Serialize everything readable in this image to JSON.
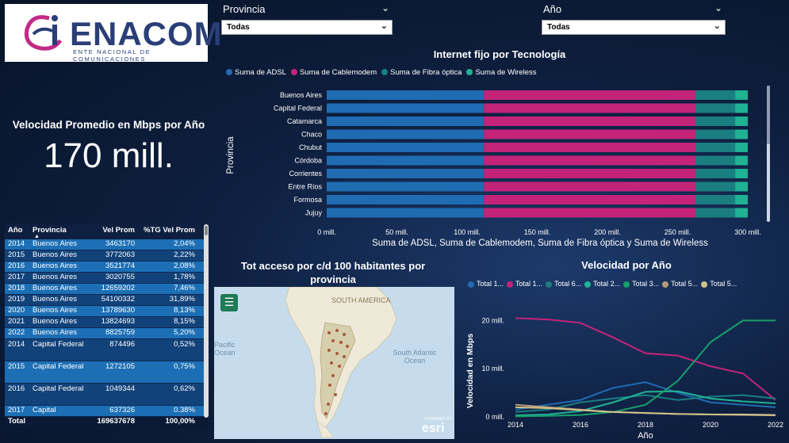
{
  "logo": {
    "name": "ENACOM",
    "subtitle": "ENTE NACIONAL DE COMUNICACIONES"
  },
  "slicers": {
    "provincia": {
      "label": "Provincia",
      "value": "Todas"
    },
    "anio": {
      "label": "Año",
      "value": "Todas"
    }
  },
  "kpi": {
    "title": "Velocidad Promedio en Mbps por Año",
    "value": "170 mill."
  },
  "table": {
    "headers": [
      "Año",
      "Provincia",
      "Vel Prom",
      "%TG Vel Prom"
    ],
    "rows": [
      [
        "2014",
        "Buenos Aires",
        "3463170",
        "2,04%"
      ],
      [
        "2015",
        "Buenos Aires",
        "3772063",
        "2,22%"
      ],
      [
        "2016",
        "Buenos Aires",
        "3521774",
        "2,08%"
      ],
      [
        "2017",
        "Buenos Aires",
        "3020755",
        "1,78%"
      ],
      [
        "2018",
        "Buenos Aires",
        "12659202",
        "7,46%"
      ],
      [
        "2019",
        "Buenos Aires",
        "54100332",
        "31,89%"
      ],
      [
        "2020",
        "Buenos Aires",
        "13789630",
        "8,13%"
      ],
      [
        "2021",
        "Buenos Aires",
        "13824693",
        "8,15%"
      ],
      [
        "2022",
        "Buenos Aires",
        "8825759",
        "5,20%"
      ],
      [
        "2014",
        "Capital Federal",
        "874496",
        "0,52%"
      ],
      [
        "2015",
        "Capital Federal",
        "1272105",
        "0,75%"
      ],
      [
        "2016",
        "Capital Federal",
        "1049344",
        "0,62%"
      ],
      [
        "2017",
        "Capital",
        "637326",
        "0.38%"
      ]
    ],
    "total": [
      "Total",
      "",
      "169637678",
      "100,00%"
    ]
  },
  "bar_chart": {
    "title": "Internet fijo por Tecnología",
    "y_axis_title": "Provincia",
    "x_axis_title": "Suma de ADSL, Suma de Cablemodem, Suma de Fibra óptica y Suma de Wireless",
    "x_ticks": [
      "0 mill.",
      "50 mill.",
      "100 mill.",
      "150 mill.",
      "200 mill.",
      "250 mill.",
      "300 mill."
    ]
  },
  "map": {
    "title": "Tot acceso por c/d 100 habitantes por provincia",
    "labels": {
      "continent": "SOUTH AMERICA",
      "pacific": "Pacific Ocean",
      "atlantic": "South Atlantic Ocean",
      "powered": "POWERED BY",
      "esri": "esri"
    },
    "menu_icon": "☰"
  },
  "line_chart": {
    "title": "Velocidad por Año",
    "y_axis_title": "Velocidad en Mbps",
    "x_axis_title": "Año",
    "y_ticks": [
      "0 mill.",
      "10 mill.",
      "20 mill."
    ],
    "x_ticks": [
      "2014",
      "2016",
      "2018",
      "2020",
      "2022"
    ],
    "legend": [
      "Total 1...",
      "Total 1...",
      "Total 6...",
      "Total 2...",
      "Total 3...",
      "Total 5...",
      "Total 5..."
    ]
  },
  "chart_data": [
    {
      "type": "bar",
      "title": "Internet fijo por Tecnología",
      "xlabel": "Suma de ADSL, Suma de Cablemodem, Suma de Fibra óptica y Suma de Wireless",
      "ylabel": "Provincia",
      "xlim": [
        0,
        300
      ],
      "x_unit": "mill.",
      "stacked": true,
      "orientation": "horizontal",
      "categories": [
        "Buenos Aires",
        "Capital Federal",
        "Catamarca",
        "Chaco",
        "Chubut",
        "Córdoba",
        "Corrientes",
        "Entre Ríos",
        "Formosa",
        "Jujuy"
      ],
      "series": [
        {
          "name": "Suma de ADSL",
          "color": "#1f6cb3",
          "values": [
            112,
            112,
            112,
            112,
            112,
            112,
            112,
            112,
            112,
            112
          ]
        },
        {
          "name": "Suma de Cablemodem",
          "color": "#c4237a",
          "values": [
            151,
            151,
            151,
            151,
            151,
            151,
            151,
            151,
            151,
            151
          ]
        },
        {
          "name": "Suma de Fibra óptica",
          "color": "#1a7e80",
          "values": [
            28,
            28,
            28,
            28,
            28,
            28,
            28,
            28,
            28,
            28
          ]
        },
        {
          "name": "Suma de Wireless",
          "color": "#20b294",
          "values": [
            9,
            9,
            9,
            9,
            9,
            9,
            9,
            9,
            9,
            9
          ]
        }
      ]
    },
    {
      "type": "line",
      "title": "Velocidad por Año",
      "xlabel": "Año",
      "ylabel": "Velocidad en Mbps",
      "ylim": [
        0,
        20
      ],
      "y_unit": "mill.",
      "x": [
        2014,
        2015,
        2016,
        2017,
        2018,
        2019,
        2020,
        2021,
        2022
      ],
      "series": [
        {
          "name": "Total 1...",
          "color": "#1f6cb3",
          "values": [
            1.5,
            2.5,
            3.5,
            6,
            7.2,
            5,
            3,
            2.5,
            2
          ]
        },
        {
          "name": "Total 1...",
          "color": "#c4237a",
          "values": [
            20.5,
            20.2,
            19.5,
            16.5,
            13.2,
            12.7,
            10.5,
            9,
            3.5
          ]
        },
        {
          "name": "Total 6...",
          "color": "#1a7e80",
          "values": [
            1,
            1.5,
            3,
            3.8,
            4.5,
            3.5,
            4.2,
            4.5,
            3.8
          ]
        },
        {
          "name": "Total 2...",
          "color": "#20b294",
          "values": [
            0.3,
            0.5,
            1.2,
            3,
            5.2,
            5.3,
            3.8,
            3.2,
            2.8
          ]
        },
        {
          "name": "Total 3...",
          "color": "#18a06a",
          "values": [
            0.1,
            0.2,
            0.4,
            1,
            2.5,
            7.5,
            15.5,
            20,
            20
          ]
        },
        {
          "name": "Total 5...",
          "color": "#b89a7a",
          "values": [
            2.5,
            2,
            1.5,
            1,
            0.8,
            0.6,
            0.5,
            0.4,
            0.3
          ]
        },
        {
          "name": "Total 5...",
          "color": "#d2c28a",
          "values": [
            2,
            1.8,
            1.4,
            1,
            0.8,
            0.6,
            0.5,
            0.5,
            0.4
          ]
        }
      ]
    }
  ]
}
